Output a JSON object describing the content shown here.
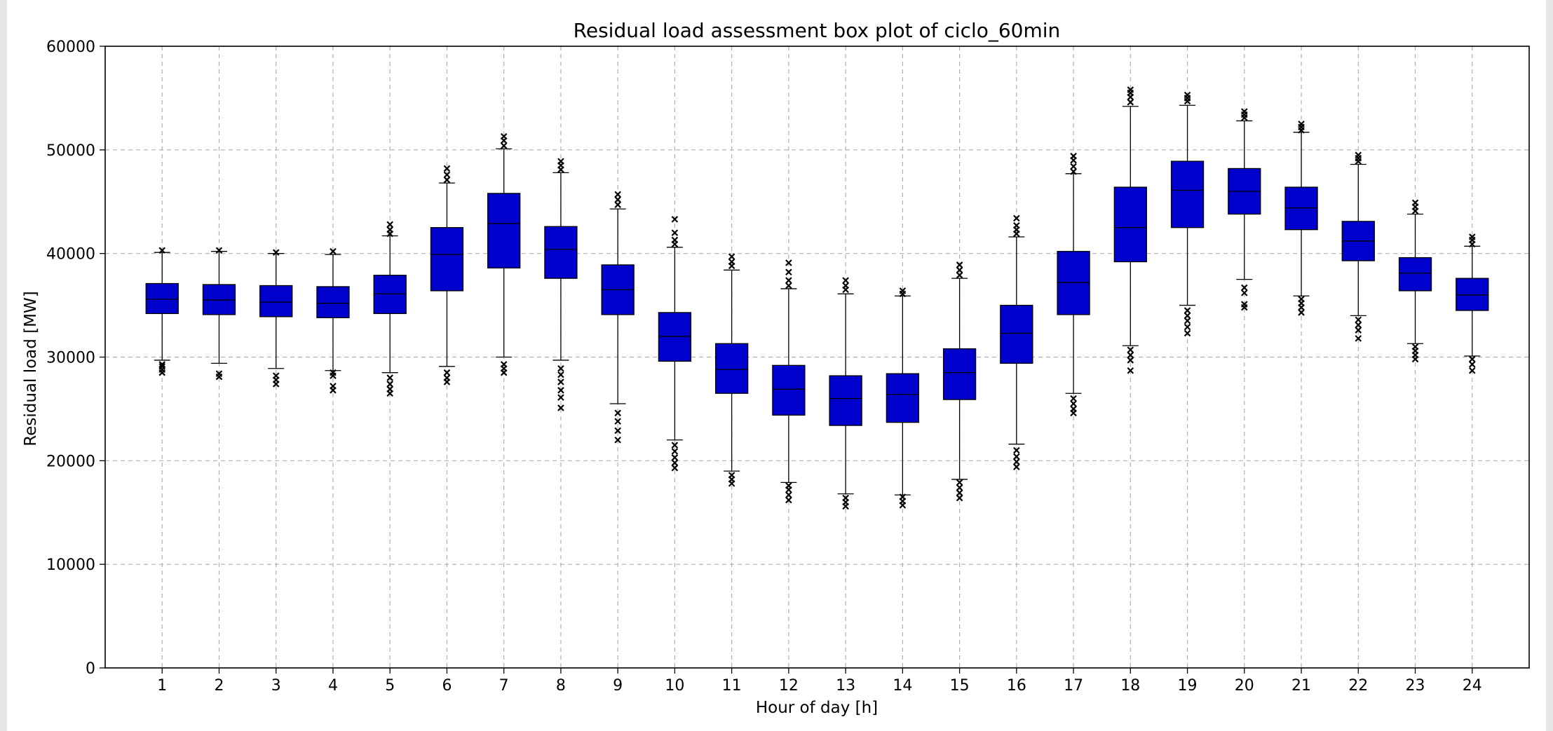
{
  "chart_data": {
    "type": "boxplot",
    "title": "Residual load assessment box plot of ciclo_60min",
    "xlabel": "Hour of day [h]",
    "ylabel": "Residual load [MW]",
    "ylim": [
      0,
      60000
    ],
    "yticks": [
      "0",
      "10000",
      "20000",
      "30000",
      "40000",
      "50000",
      "60000"
    ],
    "grid": true,
    "colors": {
      "box": "#0000cc",
      "line": "#000000",
      "grid": "#b0b0b0"
    },
    "categories": [
      "1",
      "2",
      "3",
      "4",
      "5",
      "6",
      "7",
      "8",
      "9",
      "10",
      "11",
      "12",
      "13",
      "14",
      "15",
      "16",
      "17",
      "18",
      "19",
      "20",
      "21",
      "22",
      "23",
      "24"
    ],
    "boxes": [
      {
        "hour": "1",
        "whisker_low": 29700,
        "q1": 34200,
        "median": 35600,
        "q3": 37100,
        "whisker_high": 40100,
        "outliers": [
          28500,
          28800,
          29100,
          29300,
          40300
        ]
      },
      {
        "hour": "2",
        "whisker_low": 29400,
        "q1": 34100,
        "median": 35500,
        "q3": 37000,
        "whisker_high": 40200,
        "outliers": [
          28100,
          28400,
          40300
        ]
      },
      {
        "hour": "3",
        "whisker_low": 28900,
        "q1": 33900,
        "median": 35300,
        "q3": 36900,
        "whisker_high": 40000,
        "outliers": [
          27400,
          27800,
          28200,
          40100
        ]
      },
      {
        "hour": "4",
        "whisker_low": 28700,
        "q1": 33800,
        "median": 35200,
        "q3": 36800,
        "whisker_high": 39900,
        "outliers": [
          26800,
          27200,
          28200,
          28500,
          40200
        ]
      },
      {
        "hour": "5",
        "whisker_low": 28500,
        "q1": 34200,
        "median": 36100,
        "q3": 37900,
        "whisker_high": 41700,
        "outliers": [
          26500,
          26900,
          27400,
          28000,
          41900,
          42300,
          42800
        ]
      },
      {
        "hour": "6",
        "whisker_low": 29100,
        "q1": 36400,
        "median": 39900,
        "q3": 42500,
        "whisker_high": 46800,
        "outliers": [
          27600,
          28000,
          28500,
          47100,
          47600,
          48200
        ]
      },
      {
        "hour": "7",
        "whisker_low": 30000,
        "q1": 38600,
        "median": 42900,
        "q3": 45800,
        "whisker_high": 50100,
        "outliers": [
          28500,
          28900,
          29300,
          50400,
          50900,
          51300
        ]
      },
      {
        "hour": "8",
        "whisker_low": 29700,
        "q1": 37600,
        "median": 40400,
        "q3": 42600,
        "whisker_high": 47800,
        "outliers": [
          25100,
          26100,
          26800,
          27600,
          28300,
          28900,
          48100,
          48500,
          48900
        ]
      },
      {
        "hour": "9",
        "whisker_low": 25500,
        "q1": 34100,
        "median": 36500,
        "q3": 38900,
        "whisker_high": 44300,
        "outliers": [
          22000,
          22900,
          23800,
          24600,
          44700,
          45200,
          45700
        ]
      },
      {
        "hour": "10",
        "whisker_low": 22000,
        "q1": 29600,
        "median": 32000,
        "q3": 34300,
        "whisker_high": 40600,
        "outliers": [
          19300,
          19800,
          20300,
          20900,
          21500,
          40900,
          41300,
          42000,
          43300
        ]
      },
      {
        "hour": "11",
        "whisker_low": 19000,
        "q1": 26500,
        "median": 28800,
        "q3": 31300,
        "whisker_high": 38400,
        "outliers": [
          17800,
          18200,
          18600,
          38800,
          39200,
          39700
        ]
      },
      {
        "hour": "12",
        "whisker_low": 17900,
        "q1": 24400,
        "median": 26900,
        "q3": 29200,
        "whisker_high": 36600,
        "outliers": [
          16200,
          16700,
          17200,
          17600,
          36900,
          37400,
          38200,
          39100
        ]
      },
      {
        "hour": "13",
        "whisker_low": 16800,
        "q1": 23400,
        "median": 26000,
        "q3": 28200,
        "whisker_high": 36100,
        "outliers": [
          15600,
          16000,
          16400,
          36500,
          36900,
          37400
        ]
      },
      {
        "hour": "14",
        "whisker_low": 16700,
        "q1": 23700,
        "median": 26400,
        "q3": 28400,
        "whisker_high": 35900,
        "outliers": [
          15700,
          16100,
          16500,
          36100,
          36400
        ]
      },
      {
        "hour": "15",
        "whisker_low": 18200,
        "q1": 25900,
        "median": 28500,
        "q3": 30800,
        "whisker_high": 37600,
        "outliers": [
          16400,
          16900,
          17400,
          17900,
          37900,
          38400,
          38900
        ]
      },
      {
        "hour": "16",
        "whisker_low": 21600,
        "q1": 29400,
        "median": 32300,
        "q3": 35000,
        "whisker_high": 41600,
        "outliers": [
          19400,
          19900,
          20400,
          21000,
          41900,
          42300,
          42700,
          43400
        ]
      },
      {
        "hour": "17",
        "whisker_low": 26500,
        "q1": 34100,
        "median": 37200,
        "q3": 40200,
        "whisker_high": 47700,
        "outliers": [
          24600,
          25000,
          25500,
          26000,
          47900,
          48400,
          49000,
          49400
        ]
      },
      {
        "hour": "18",
        "whisker_low": 31100,
        "q1": 39200,
        "median": 42500,
        "q3": 46400,
        "whisker_high": 54200,
        "outliers": [
          28700,
          29700,
          30200,
          30700,
          54600,
          55100,
          55500,
          55800
        ]
      },
      {
        "hour": "19",
        "whisker_low": 35000,
        "q1": 42500,
        "median": 46100,
        "q3": 48900,
        "whisker_high": 54300,
        "outliers": [
          32300,
          32900,
          33500,
          34000,
          34500,
          54700,
          55000,
          55300
        ]
      },
      {
        "hour": "20",
        "whisker_low": 37500,
        "q1": 43800,
        "median": 46000,
        "q3": 48200,
        "whisker_high": 52800,
        "outliers": [
          34800,
          35100,
          36200,
          36700,
          53100,
          53400,
          53700
        ]
      },
      {
        "hour": "21",
        "whisker_low": 35900,
        "q1": 42300,
        "median": 44400,
        "q3": 46400,
        "whisker_high": 51700,
        "outliers": [
          34300,
          34800,
          35200,
          35600,
          51900,
          52200,
          52500
        ]
      },
      {
        "hour": "22",
        "whisker_low": 34000,
        "q1": 39300,
        "median": 41200,
        "q3": 43100,
        "whisker_high": 48600,
        "outliers": [
          31800,
          32600,
          33100,
          33600,
          48900,
          49200,
          49500
        ]
      },
      {
        "hour": "23",
        "whisker_low": 31300,
        "q1": 36400,
        "median": 38100,
        "q3": 39600,
        "whisker_high": 43800,
        "outliers": [
          29800,
          30200,
          30600,
          31000,
          44100,
          44500,
          44900
        ]
      },
      {
        "hour": "24",
        "whisker_low": 30100,
        "q1": 34500,
        "median": 36000,
        "q3": 37600,
        "whisker_high": 40700,
        "outliers": [
          28700,
          29300,
          29800,
          40900,
          41300,
          41600
        ]
      }
    ]
  }
}
